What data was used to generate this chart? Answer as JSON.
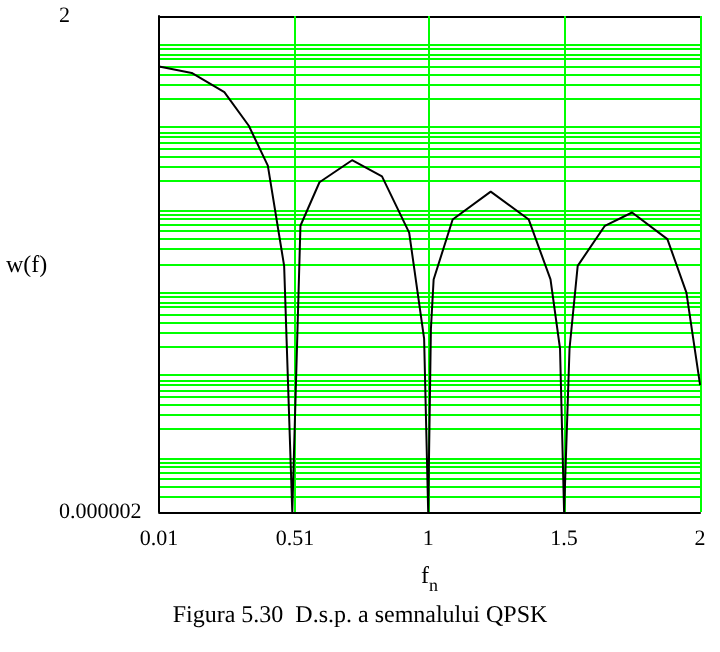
{
  "chart_data": {
    "type": "line",
    "title": "Figura 5.30  D.s.p. a semnalului QPSK",
    "xlabel": "f$_{n}$",
    "ylabel": "w(f)",
    "log": "y",
    "grid": true,
    "marker": "none",
    "line_style": "solid",
    "x": [
      0.01,
      0.13,
      0.25,
      0.34,
      0.41,
      0.47,
      0.5,
      0.53,
      0.6,
      0.72,
      0.83,
      0.93,
      0.985,
      1,
      1.01,
      1.02,
      1.09,
      1.23,
      1.37,
      1.45,
      1.485,
      1.5,
      1.52,
      1.55,
      1.65,
      1.75,
      1.88,
      1.95,
      2
    ],
    "series": [
      {
        "color": "#000000",
        "values": [
          0.49,
          0.41,
          0.24,
          0.094,
          0.031,
          0.0019,
          2e-06,
          0.0058,
          0.0195,
          0.036,
          0.023,
          0.0048,
          0.00025,
          2e-06,
          0.00033,
          0.0013,
          0.0069,
          0.015,
          0.0069,
          0.0013,
          0.00019,
          2e-06,
          0.00019,
          0.0019,
          0.0058,
          0.0084,
          0.004,
          0.0009,
          7e-05
        ]
      }
    ],
    "xlim": [
      0.01,
      2
    ],
    "xticks": [
      0.01,
      0.51,
      1,
      1.5,
      2
    ],
    "ylim": [
      2e-06,
      2
    ],
    "yticks": [
      {
        "value": 2e-06,
        "label": "0.000002"
      },
      2
    ]
  }
}
